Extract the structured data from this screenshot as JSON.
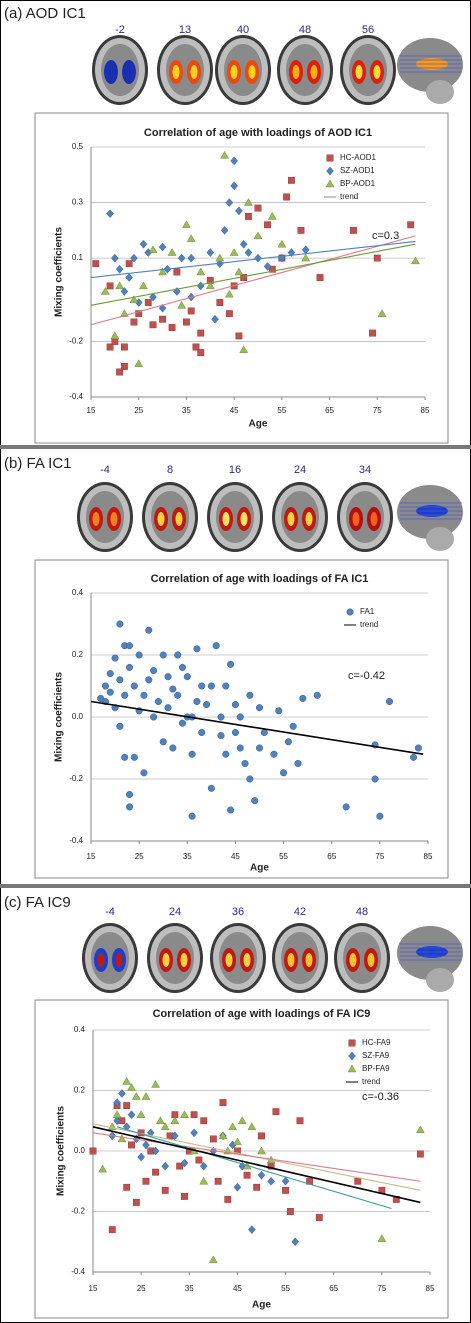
{
  "chart_data": [
    {
      "type": "scatter",
      "panel_label": "(a) AOD IC1",
      "slice_labels": [
        "-2",
        "13",
        "40",
        "48",
        "56"
      ],
      "title": "Correlation of age with loadings of AOD IC1",
      "xlabel": "Age",
      "ylabel": "Mixing coefficients",
      "xlim": [
        15,
        85
      ],
      "xticks": [
        15,
        25,
        35,
        45,
        55,
        65,
        75,
        85
      ],
      "ylim": [
        -0.4,
        0.5
      ],
      "yticks": [
        -0.4,
        -0.2,
        0.1,
        0.3,
        0.5
      ],
      "grid": true,
      "annotation": "c=0.3",
      "series": [
        {
          "name": "HC-AOD1",
          "color": "#c0504d",
          "marker": "square",
          "x": [
            16,
            19,
            19,
            20,
            21,
            22,
            22,
            23,
            24,
            25,
            27,
            28,
            30,
            32,
            33,
            35,
            36,
            37,
            38,
            38,
            40,
            42,
            44,
            45,
            46,
            47,
            50,
            52,
            53,
            55,
            57,
            59,
            63,
            70,
            75,
            82,
            74,
            48,
            56
          ],
          "values": [
            0.08,
            0.0,
            -0.22,
            -0.2,
            -0.31,
            -0.29,
            -0.22,
            0.08,
            -0.13,
            -0.1,
            -0.06,
            -0.14,
            -0.12,
            -0.15,
            0.05,
            -0.13,
            -0.09,
            -0.22,
            -0.24,
            -0.17,
            0.02,
            -0.06,
            -0.1,
            0.0,
            -0.18,
            0.03,
            0.28,
            0.22,
            0.06,
            0.1,
            0.38,
            0.2,
            0.03,
            0.2,
            0.1,
            0.22,
            -0.17,
            0.25,
            0.32
          ]
        },
        {
          "name": "SZ-AOD1",
          "color": "#4f81bd",
          "marker": "diamond",
          "x": [
            19,
            20,
            21,
            22,
            23,
            24,
            26,
            27,
            28,
            30,
            31,
            33,
            34,
            36,
            38,
            40,
            42,
            43,
            44,
            45,
            45,
            46,
            47,
            48,
            50,
            52,
            55,
            57,
            60,
            25,
            30,
            41,
            36
          ],
          "values": [
            0.26,
            0.1,
            0.06,
            -0.02,
            0.03,
            0.1,
            0.15,
            0.12,
            -0.04,
            0.14,
            0.06,
            -0.02,
            0.1,
            0.1,
            0.0,
            0.12,
            0.08,
            0.2,
            0.3,
            0.45,
            0.36,
            0.27,
            0.15,
            0.12,
            0.1,
            0.07,
            0.1,
            0.12,
            0.13,
            -0.06,
            -0.08,
            -0.12,
            -0.04
          ]
        },
        {
          "name": "BP-AOD1",
          "color": "#9bbb59",
          "marker": "triangle",
          "x": [
            18,
            20,
            21,
            22,
            24,
            25,
            26,
            28,
            30,
            32,
            35,
            36,
            38,
            40,
            42,
            43,
            45,
            46,
            47,
            48,
            50,
            53,
            55,
            60,
            76,
            83,
            34,
            44
          ],
          "values": [
            -0.02,
            -0.18,
            0.0,
            -0.1,
            -0.05,
            -0.28,
            0.0,
            0.13,
            0.05,
            0.12,
            0.22,
            0.17,
            0.05,
            0.0,
            0.1,
            0.47,
            0.12,
            0.05,
            -0.23,
            0.3,
            0.18,
            0.25,
            0.15,
            0.1,
            -0.1,
            0.09,
            -0.07,
            -0.03
          ]
        }
      ],
      "trend_label": "trend",
      "trend_color": "#888888",
      "trend_lines": [
        {
          "color": "#e07a8a",
          "x": [
            15,
            83
          ],
          "values": [
            -0.14,
            0.18
          ]
        },
        {
          "color": "#4f81bd",
          "x": [
            15,
            83
          ],
          "values": [
            0.03,
            0.16
          ]
        },
        {
          "color": "#6a9a3a",
          "x": [
            15,
            83
          ],
          "values": [
            -0.07,
            0.15
          ]
        }
      ]
    },
    {
      "type": "scatter",
      "panel_label": "(b) FA IC1",
      "slice_labels": [
        "-4",
        "8",
        "16",
        "24",
        "34"
      ],
      "title": "Correlation of age with loadings of FA IC1",
      "xlabel": "Age",
      "ylabel": "Mixing coefficients",
      "xlim": [
        15,
        85
      ],
      "xticks": [
        15,
        25,
        35,
        45,
        55,
        65,
        75,
        85
      ],
      "ylim": [
        -0.4,
        0.4
      ],
      "yticks": [
        {
          "value": -0.4,
          "label": "-0.4"
        },
        {
          "value": -0.2,
          "label": "-0.2"
        },
        {
          "value": 0,
          "label": "0.0"
        },
        {
          "value": 0.2,
          "label": "0.2"
        },
        {
          "value": 0.4,
          "label": "0.4"
        }
      ],
      "grid": true,
      "annotation": "c=-0.42",
      "series": [
        {
          "name": "FA1",
          "color": "#4f81bd",
          "marker": "circle",
          "x": [
            17,
            18,
            18,
            19,
            19,
            20,
            20,
            21,
            21,
            21,
            22,
            22,
            22,
            23,
            23,
            23,
            23,
            24,
            24,
            25,
            25,
            26,
            26,
            27,
            27,
            28,
            28,
            29,
            30,
            30,
            31,
            31,
            32,
            32,
            33,
            33,
            34,
            34,
            35,
            35,
            36,
            36,
            36,
            37,
            37,
            38,
            38,
            39,
            40,
            40,
            41,
            42,
            42,
            43,
            43,
            44,
            44,
            45,
            45,
            46,
            46,
            47,
            48,
            48,
            49,
            50,
            50,
            51,
            53,
            54,
            55,
            56,
            57,
            58,
            59,
            62,
            68,
            74,
            74,
            75,
            77,
            82,
            83
          ],
          "values": [
            0.06,
            0.05,
            0.1,
            0.08,
            0.14,
            0.03,
            0.19,
            0.3,
            0.12,
            -0.03,
            0.23,
            0.07,
            -0.13,
            0.23,
            0.16,
            -0.25,
            -0.29,
            0.1,
            -0.13,
            0.2,
            0.02,
            0.07,
            -0.18,
            0.28,
            0.12,
            0.0,
            0.15,
            0.05,
            0.2,
            -0.08,
            0.13,
            0.03,
            0.09,
            -0.1,
            0.2,
            0.07,
            0.16,
            -0.02,
            0.13,
            0.0,
            0.0,
            -0.12,
            -0.32,
            0.22,
            0.05,
            0.1,
            -0.05,
            0.04,
            -0.23,
            0.1,
            0.23,
            0.0,
            -0.06,
            0.1,
            -0.12,
            0.17,
            -0.3,
            0.04,
            -0.05,
            0.0,
            -0.1,
            -0.15,
            -0.2,
            0.07,
            -0.27,
            -0.1,
            0.03,
            -0.05,
            -0.12,
            0.02,
            -0.18,
            -0.08,
            -0.03,
            -0.15,
            0.06,
            0.07,
            -0.29,
            -0.09,
            -0.2,
            -0.32,
            0.05,
            -0.13,
            -0.1
          ]
        }
      ],
      "trend_label": "trend",
      "trend_color": "#000000",
      "trend_lines": [
        {
          "color": "#000000",
          "x": [
            15,
            84
          ],
          "values": [
            0.05,
            -0.12
          ]
        }
      ]
    },
    {
      "type": "scatter",
      "panel_label": "(c) FA IC9",
      "slice_labels": [
        "-4",
        "24",
        "36",
        "42",
        "48"
      ],
      "title": "Correlation of age with loadings of FA IC9",
      "xlabel": "Age",
      "ylabel": "Mixing coefficients",
      "xlim": [
        15,
        85
      ],
      "xticks": [
        15,
        25,
        35,
        45,
        55,
        65,
        75,
        85
      ],
      "ylim": [
        -0.4,
        0.4
      ],
      "yticks": [
        {
          "value": -0.4,
          "label": "-0.4"
        },
        {
          "value": -0.2,
          "label": "-0.2"
        },
        {
          "value": 0,
          "label": "0.0"
        },
        {
          "value": 0.2,
          "label": "0.2"
        },
        {
          "value": 0.4,
          "label": "0.4"
        }
      ],
      "grid": true,
      "annotation": "c=-0.36",
      "series": [
        {
          "name": "HC-FA9",
          "color": "#c0504d",
          "marker": "square",
          "x": [
            15,
            19,
            20,
            21,
            22,
            23,
            24,
            25,
            26,
            27,
            28,
            30,
            31,
            32,
            33,
            34,
            35,
            36,
            37,
            38,
            40,
            41,
            42,
            43,
            45,
            47,
            49,
            50,
            52,
            53,
            55,
            56,
            58,
            60,
            62,
            70,
            75,
            78,
            83,
            22
          ],
          "values": [
            0.0,
            -0.26,
            0.15,
            0.1,
            -0.12,
            0.02,
            -0.17,
            0.06,
            -0.1,
            0.0,
            -0.07,
            -0.13,
            0.05,
            0.12,
            -0.05,
            -0.15,
            0.0,
            0.12,
            -0.03,
            0.1,
            0.04,
            -0.1,
            0.16,
            -0.16,
            0.0,
            -0.08,
            -0.12,
            0.05,
            -0.05,
            0.13,
            -0.13,
            -0.2,
            0.1,
            -0.1,
            -0.22,
            -0.1,
            -0.13,
            -0.16,
            -0.01,
            0.15
          ]
        },
        {
          "name": "SZ-FA9",
          "color": "#4f81bd",
          "marker": "diamond",
          "x": [
            19,
            20,
            21,
            22,
            23,
            24,
            25,
            26,
            28,
            30,
            32,
            34,
            36,
            38,
            40,
            42,
            44,
            45,
            46,
            48,
            50,
            52,
            55,
            57,
            20,
            27
          ],
          "values": [
            0.05,
            0.16,
            0.19,
            0.08,
            0.12,
            0.04,
            -0.02,
            0.02,
            0.0,
            -0.05,
            0.05,
            -0.04,
            0.06,
            -0.05,
            0.0,
            0.05,
            0.02,
            -0.12,
            -0.05,
            -0.26,
            -0.08,
            -0.1,
            -0.1,
            -0.3,
            0.1,
            0.06
          ]
        },
        {
          "name": "BP-FA9",
          "color": "#9bbb59",
          "marker": "triangle",
          "x": [
            17,
            19,
            20,
            21,
            22,
            23,
            24,
            25,
            26,
            28,
            30,
            32,
            34,
            36,
            38,
            40,
            42,
            43,
            44,
            45,
            46,
            47,
            48,
            50,
            52,
            75,
            83,
            29
          ],
          "values": [
            -0.06,
            0.08,
            0.12,
            0.04,
            0.23,
            0.21,
            0.18,
            0.12,
            0.18,
            0.22,
            0.08,
            0.1,
            0.12,
            0.0,
            -0.1,
            -0.36,
            0.05,
            0.0,
            0.08,
            0.03,
            0.1,
            -0.05,
            0.08,
            0.0,
            -0.03,
            -0.29,
            0.07,
            0.1
          ]
        }
      ],
      "trend_label": "trend",
      "trend_color": "#000000",
      "trend_lines": [
        {
          "color": "#c8b98a",
          "x": [
            15,
            83
          ],
          "values": [
            0.09,
            -0.13
          ]
        },
        {
          "color": "#e07a8a",
          "x": [
            15,
            83
          ],
          "values": [
            0.06,
            -0.1
          ]
        },
        {
          "color": "#3a9aa0",
          "x": [
            20,
            77
          ],
          "values": [
            0.08,
            -0.19
          ]
        },
        {
          "color": "#000000",
          "x": [
            15,
            83
          ],
          "values": [
            0.08,
            -0.17
          ]
        }
      ]
    }
  ]
}
